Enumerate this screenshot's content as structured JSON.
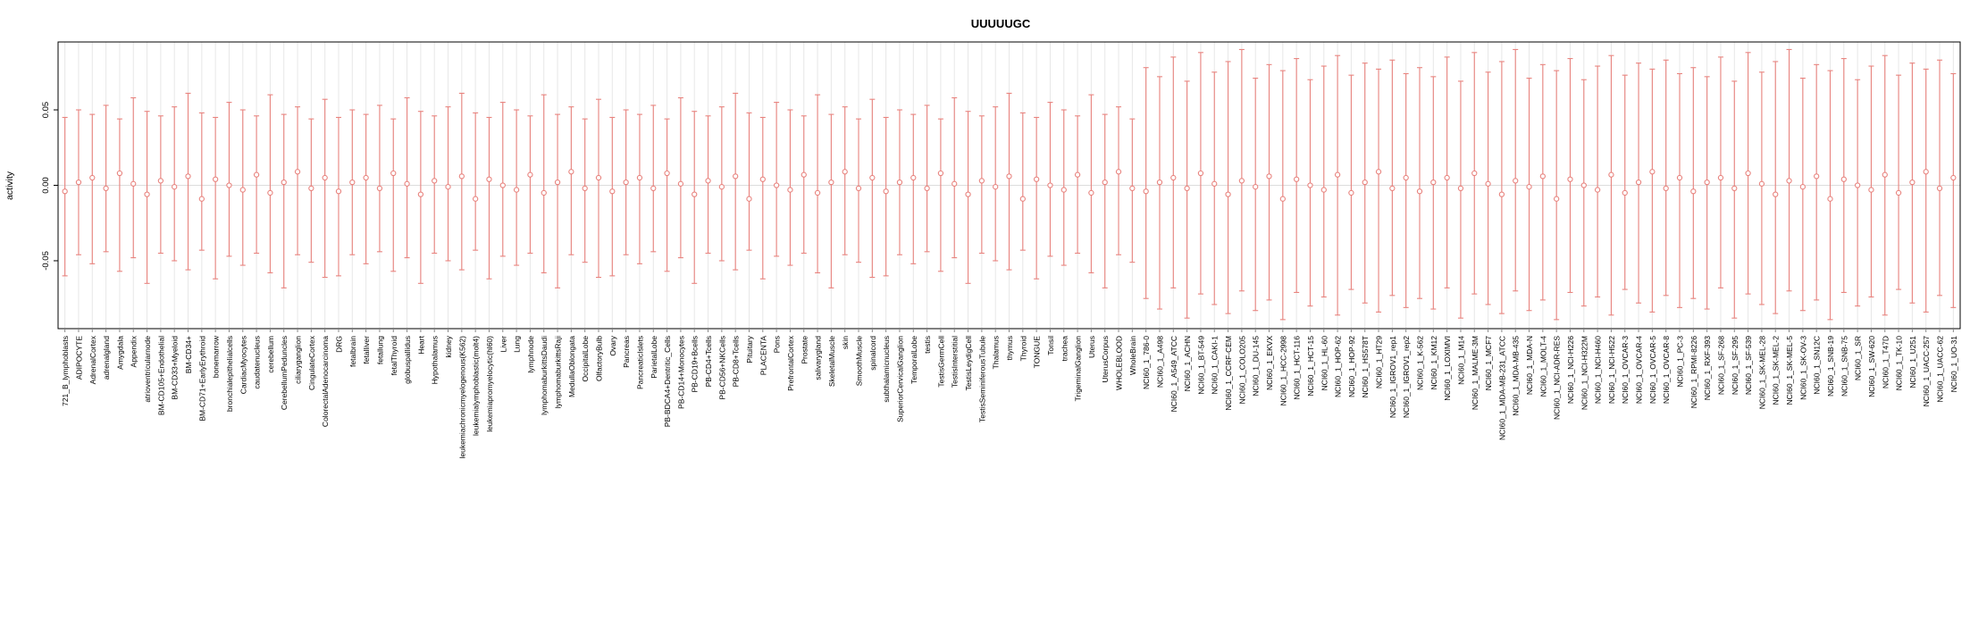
{
  "header": {
    "title": "UUUUUGC"
  },
  "colors": {
    "bar": "#e8837e",
    "grid": "#e7e7e7",
    "zero_line": "#dcdcdc",
    "box": "#000000",
    "text": "#000000"
  },
  "chart_data": {
    "type": "scatter",
    "style": "errorbar",
    "title": "UUUUUGC",
    "xlabel": "",
    "ylabel": "activity",
    "ylim": [
      -0.095,
      0.095
    ],
    "yticks": [
      -0.05,
      0,
      0.05
    ],
    "ytick_labels": [
      "-0.05",
      "0.00",
      "0.05"
    ],
    "grid": "vertical gridline per category",
    "legend": "none",
    "point_style": "open-circle",
    "categories": [
      "721_B_lymphoblasts",
      "ADIPOCYTE",
      "AdrenalCortex",
      "adrenalgland",
      "Amygdala",
      "Appendix",
      "atrioventricularnode",
      "BM-CD105+Endothelial",
      "BM-CD33+Myeloid",
      "BM-CD34+",
      "BM-CD71+EarlyErythroid",
      "bonemarrow",
      "bronchialepithelialcells",
      "CardiacMyocytes",
      "caudatenucleus",
      "cerebellum",
      "CerebellumPeduncles",
      "ciliaryganglion",
      "CingulateCortex",
      "ColorectalAdenocarcinoma",
      "DRG",
      "fetalbrain",
      "fetalliver",
      "fetallung",
      "fetalThyroid",
      "globuspallidus",
      "Heart",
      "Hypothalamus",
      "kidney",
      "leukemiachronicmyelogenous(K562)",
      "leukemialymphoblastic(molt4)",
      "leukemiapromyelocytic(hl60)",
      "Liver",
      "Lung",
      "lymphnode",
      "lymphomaburkittsDaudi",
      "lymphomaburkittsRaji",
      "MedullaOblongata",
      "OccipitalLobe",
      "OlfactoryBulb",
      "Ovary",
      "Pancreas",
      "PancreaticIslets",
      "ParietalLobe",
      "PB-BDCA4+Dentritic_Cells",
      "PB-CD14+Monocytes",
      "PB-CD19+Bcells",
      "PB-CD4+Tcells",
      "PB-CD56+NKCells",
      "PB-CD8+Tcells",
      "Pituitary",
      "PLACENTA",
      "Pons",
      "PrefrontalCortex",
      "Prostate",
      "salivarygland",
      "SkeletalMuscle",
      "skin",
      "SmoothMuscle",
      "spinalcord",
      "subthalamicnucleus",
      "SuperiorCervicalGanglion",
      "TemporalLobe",
      "testis",
      "TestisGermCell",
      "TestisInterstitial",
      "TestisLeydigCell",
      "TestisSeminiferousTubule",
      "Thalamus",
      "thymus",
      "Thyroid",
      "TONGUE",
      "Tonsil",
      "trachea",
      "TrigeminalGanglion",
      "Uterus",
      "UterusCorpus",
      "WHOLEBLOOD",
      "WholeBrain",
      "NCI60_1_786-0",
      "NCI60_1_A498",
      "NCI60_1_A549_ATCC",
      "NCI60_1_ACHN",
      "NCI60_1_BT-549",
      "NCI60_1_CAKI-1",
      "NCI60_1_CCRF-CEM",
      "NCI60_1_COLO205",
      "NCI60_1_DU-145",
      "NCI60_1_EKVX",
      "NCI60_1_HCC-2998",
      "NCI60_1_HCT-116",
      "NCI60_1_HCT-15",
      "NCI60_1_HL-60",
      "NCI60_1_HOP-62",
      "NCI60_1_HOP-92",
      "NCI60_1_HS578T",
      "NCI60_1_HT29",
      "NCI60_1_IGROV1_rep1",
      "NCI60_1_IGROV1_rep2",
      "NCI60_1_K-562",
      "NCI60_1_KM12",
      "NCI60_1_LOXIMVI",
      "NCI60_1_M14",
      "NCI60_1_MALME-3M",
      "NCI60_1_MCF7",
      "NCI60_1_MDA-MB-231_ATCC",
      "NCI60_1_MDA-MB-435",
      "NCI60_1_MDA-N",
      "NCI60_1_MOLT-4",
      "NCI60_1_NCI-ADR-RES",
      "NCI60_1_NCI-H226",
      "NCI60_1_NCI-H322M",
      "NCI60_1_NCI-H460",
      "NCI60_1_NCI-H522",
      "NCI60_1_OVCAR-3",
      "NCI60_1_OVCAR-4",
      "NCI60_1_OVCAR-5",
      "NCI60_1_OVCAR-8",
      "NCI60_1_PC-3",
      "NCI60_1_RPMI-8226",
      "NCI60_1_RXF-393",
      "NCI60_1_SF-268",
      "NCI60_1_SF-295",
      "NCI60_1_SF-539",
      "NCI60_1_SK-MEL-28",
      "NCI60_1_SK-MEL-2",
      "NCI60_1_SK-MEL-5",
      "NCI60_1_SK-OV-3",
      "NCI60_1_SN12C",
      "NCI60_1_SNB-19",
      "NCI60_1_SNB-75",
      "NCI60_1_SR",
      "NCI60_1_SW-620",
      "NCI60_1_T47D",
      "NCI60_1_TK-10",
      "NCI60_1_U251",
      "NCI60_1_UACC-257",
      "NCI60_1_UACC-62",
      "NCI60_1_UO-31"
    ],
    "series": [
      {
        "name": "activity",
        "values": [
          -0.004,
          0.002,
          0.005,
          -0.002,
          0.008,
          0.001,
          -0.006,
          0.003,
          -0.001,
          0.006,
          -0.009,
          0.004,
          0,
          -0.003,
          0.007,
          -0.005,
          0.002,
          0.009,
          -0.002,
          0.005,
          -0.004,
          0.002,
          0.005,
          -0.002,
          0.008,
          0.001,
          -0.006,
          0.003,
          -0.001,
          0.006,
          -0.009,
          0.004,
          0,
          -0.003,
          0.007,
          -0.005,
          0.002,
          0.009,
          -0.002,
          0.005,
          -0.004,
          0.002,
          0.005,
          -0.002,
          0.008,
          0.001,
          -0.006,
          0.003,
          -0.001,
          0.006,
          -0.009,
          0.004,
          0,
          -0.003,
          0.007,
          -0.005,
          0.002,
          0.009,
          -0.002,
          0.005,
          -0.004,
          0.002,
          0.005,
          -0.002,
          0.008,
          0.001,
          -0.006,
          0.003,
          -0.001,
          0.006,
          -0.009,
          0.004,
          0,
          -0.003,
          0.007,
          -0.005,
          0.002,
          0.009,
          -0.002,
          -0.004,
          0.002,
          0.005,
          -0.002,
          0.008,
          0.001,
          -0.006,
          0.003,
          -0.001,
          0.006,
          -0.009,
          0.004,
          0,
          -0.003,
          0.007,
          -0.005,
          0.002,
          0.009,
          -0.002,
          0.005,
          -0.004,
          0.002,
          0.005,
          -0.002,
          0.008,
          0.001,
          -0.006,
          0.003,
          -0.001,
          0.006,
          -0.009,
          0.004,
          0,
          -0.003,
          0.007,
          -0.005,
          0.002,
          0.009,
          -0.002,
          0.005,
          -0.004,
          0.002,
          0.005,
          -0.002,
          0.008,
          0.001,
          -0.006,
          0.003,
          -0.001,
          0.006,
          -0.009,
          0.004,
          0,
          -0.003,
          0.007,
          -0.005,
          0.002,
          0.009,
          -0.002,
          0.005
        ]
      },
      {
        "name": "upper_bound",
        "values": [
          0.045,
          0.05,
          0.047,
          0.053,
          0.044,
          0.058,
          0.049,
          0.046,
          0.052,
          0.061,
          0.048,
          0.045,
          0.055,
          0.05,
          0.046,
          0.06,
          0.047,
          0.052,
          0.044,
          0.057,
          0.045,
          0.05,
          0.047,
          0.053,
          0.044,
          0.058,
          0.049,
          0.046,
          0.052,
          0.061,
          0.048,
          0.045,
          0.055,
          0.05,
          0.046,
          0.06,
          0.047,
          0.052,
          0.044,
          0.057,
          0.045,
          0.05,
          0.047,
          0.053,
          0.044,
          0.058,
          0.049,
          0.046,
          0.052,
          0.061,
          0.048,
          0.045,
          0.055,
          0.05,
          0.046,
          0.06,
          0.047,
          0.052,
          0.044,
          0.057,
          0.045,
          0.05,
          0.047,
          0.053,
          0.044,
          0.058,
          0.049,
          0.046,
          0.052,
          0.061,
          0.048,
          0.045,
          0.055,
          0.05,
          0.046,
          0.06,
          0.047,
          0.052,
          0.044,
          0.078,
          0.072,
          0.085,
          0.069,
          0.088,
          0.075,
          0.082,
          0.09,
          0.071,
          0.08,
          0.076,
          0.084,
          0.07,
          0.079,
          0.086,
          0.073,
          0.081,
          0.077,
          0.083,
          0.074,
          0.078,
          0.072,
          0.085,
          0.069,
          0.088,
          0.075,
          0.082,
          0.09,
          0.071,
          0.08,
          0.076,
          0.084,
          0.07,
          0.079,
          0.086,
          0.073,
          0.081,
          0.077,
          0.083,
          0.074,
          0.078,
          0.072,
          0.085,
          0.069,
          0.088,
          0.075,
          0.082,
          0.09,
          0.071,
          0.08,
          0.076,
          0.084,
          0.07,
          0.079,
          0.086,
          0.073,
          0.081,
          0.077,
          0.083,
          0.074
        ]
      },
      {
        "name": "lower_bound",
        "values": [
          -0.06,
          -0.046,
          -0.052,
          -0.044,
          -0.057,
          -0.048,
          -0.065,
          -0.045,
          -0.05,
          -0.056,
          -0.043,
          -0.062,
          -0.047,
          -0.053,
          -0.045,
          -0.058,
          -0.068,
          -0.046,
          -0.051,
          -0.061,
          -0.06,
          -0.046,
          -0.052,
          -0.044,
          -0.057,
          -0.048,
          -0.065,
          -0.045,
          -0.05,
          -0.056,
          -0.043,
          -0.062,
          -0.047,
          -0.053,
          -0.045,
          -0.058,
          -0.068,
          -0.046,
          -0.051,
          -0.061,
          -0.06,
          -0.046,
          -0.052,
          -0.044,
          -0.057,
          -0.048,
          -0.065,
          -0.045,
          -0.05,
          -0.056,
          -0.043,
          -0.062,
          -0.047,
          -0.053,
          -0.045,
          -0.058,
          -0.068,
          -0.046,
          -0.051,
          -0.061,
          -0.06,
          -0.046,
          -0.052,
          -0.044,
          -0.057,
          -0.048,
          -0.065,
          -0.045,
          -0.05,
          -0.056,
          -0.043,
          -0.062,
          -0.047,
          -0.053,
          -0.045,
          -0.058,
          -0.068,
          -0.046,
          -0.051,
          -0.075,
          -0.082,
          -0.068,
          -0.088,
          -0.072,
          -0.079,
          -0.085,
          -0.07,
          -0.083,
          -0.076,
          -0.089,
          -0.071,
          -0.08,
          -0.074,
          -0.086,
          -0.069,
          -0.078,
          -0.084,
          -0.073,
          -0.081,
          -0.075,
          -0.082,
          -0.068,
          -0.088,
          -0.072,
          -0.079,
          -0.085,
          -0.07,
          -0.083,
          -0.076,
          -0.089,
          -0.071,
          -0.08,
          -0.074,
          -0.086,
          -0.069,
          -0.078,
          -0.084,
          -0.073,
          -0.081,
          -0.075,
          -0.082,
          -0.068,
          -0.088,
          -0.072,
          -0.079,
          -0.085,
          -0.07,
          -0.083,
          -0.076,
          -0.089,
          -0.071,
          -0.08,
          -0.074,
          -0.086,
          -0.069,
          -0.078,
          -0.084,
          -0.073,
          -0.081
        ]
      }
    ]
  }
}
